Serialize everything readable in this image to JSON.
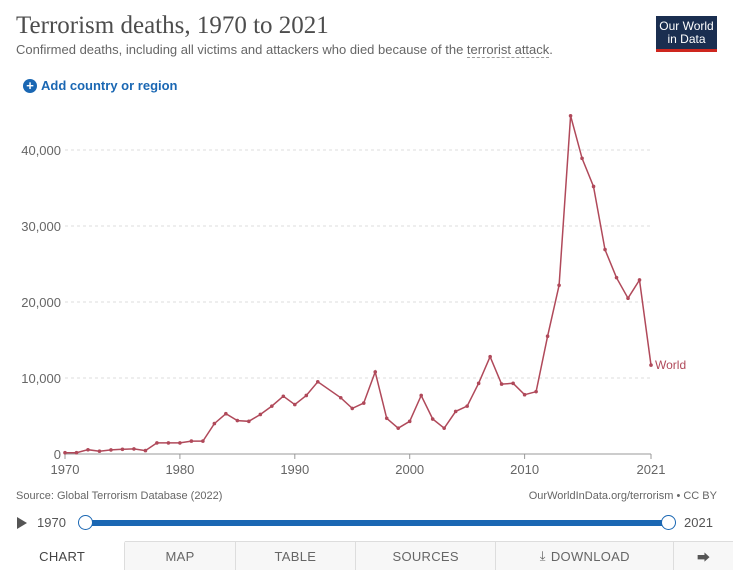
{
  "header": {
    "title": "Terrorism deaths, 1970 to 2021",
    "subtitle_pre": "Confirmed deaths, including all victims and attackers who died because of the ",
    "subtitle_link": "terrorist attack",
    "subtitle_post": ".",
    "logo_line1": "Our World",
    "logo_line2": "in Data",
    "add_country": "Add country or region"
  },
  "chart_data": {
    "type": "line",
    "title": "Terrorism deaths, 1970 to 2021",
    "xlabel": "",
    "ylabel": "",
    "xlim": [
      1970,
      2021
    ],
    "ylim": [
      0,
      45000
    ],
    "x_ticks": [
      1970,
      1980,
      1990,
      2000,
      2010,
      2021
    ],
    "x_tick_labels": [
      "1970",
      "1980",
      "1990",
      "2000",
      "2010",
      "2021"
    ],
    "y_ticks": [
      0,
      10000,
      20000,
      30000,
      40000
    ],
    "y_tick_labels": [
      "0",
      "10,000",
      "20,000",
      "30,000",
      "40,000"
    ],
    "grid": "horizontal dashed",
    "series": [
      {
        "name": "World",
        "color": "#b0495a",
        "x": [
          1970,
          1971,
          1972,
          1973,
          1974,
          1975,
          1976,
          1977,
          1978,
          1979,
          1980,
          1981,
          1982,
          1983,
          1984,
          1985,
          1986,
          1987,
          1988,
          1989,
          1990,
          1991,
          1992,
          1994,
          1995,
          1996,
          1997,
          1998,
          1999,
          2000,
          2001,
          2002,
          2003,
          2004,
          2005,
          2006,
          2007,
          2008,
          2009,
          2010,
          2011,
          2012,
          2013,
          2014,
          2015,
          2016,
          2017,
          2018,
          2019,
          2020,
          2021
        ],
        "values": [
          170,
          170,
          560,
          370,
          540,
          620,
          670,
          450,
          1460,
          1460,
          1460,
          1700,
          1700,
          4000,
          5300,
          4400,
          4300,
          5200,
          6300,
          7600,
          6500,
          7700,
          9500,
          7400,
          6000,
          6700,
          10800,
          4700,
          3400,
          4300,
          7700,
          4600,
          3400,
          5600,
          6300,
          9300,
          12800,
          9200,
          9300,
          7800,
          8200,
          15500,
          22200,
          44500,
          38900,
          35200,
          26900,
          23200,
          20500,
          22900,
          11700
        ]
      }
    ]
  },
  "footer": {
    "source": "Source: Global Terrorism Database (2022)",
    "credit": "OurWorldInData.org/terrorism • CC BY"
  },
  "timeline": {
    "start": "1970",
    "end": "2021"
  },
  "tabs": [
    {
      "label": "CHART"
    },
    {
      "label": "MAP"
    },
    {
      "label": "TABLE"
    },
    {
      "label": "SOURCES"
    },
    {
      "label": "DOWNLOAD"
    }
  ]
}
